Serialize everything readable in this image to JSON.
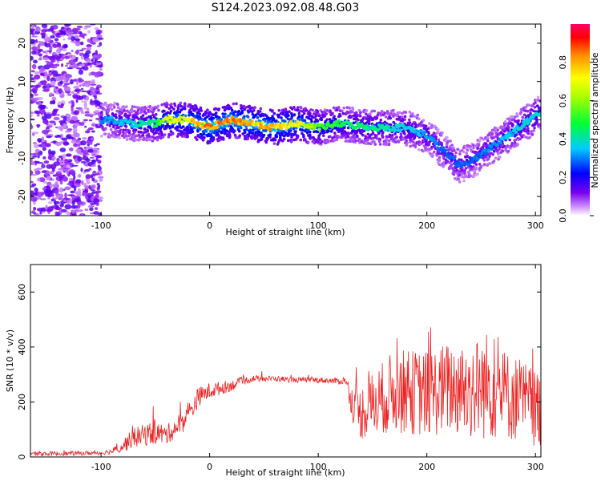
{
  "title": "S124.2023.092.08.48.G03",
  "chart_data": [
    {
      "type": "heatmap",
      "name": "spectrogram",
      "xlabel": "Height of straight line (km)",
      "ylabel": "Frequency (Hz)",
      "xlim": [
        -165,
        305
      ],
      "ylim": [
        -25,
        25
      ],
      "xticks": [
        -100,
        0,
        100,
        200,
        300
      ],
      "yticks": [
        -20,
        -10,
        0,
        10,
        20
      ],
      "xtick_labels": [
        "-100",
        "0",
        "100",
        "200",
        "300"
      ],
      "ytick_labels": [
        "-20",
        "-10",
        "0",
        "10",
        "20"
      ],
      "colorbar": {
        "label": "Normalized spectral amplitude",
        "range": [
          0,
          1
        ],
        "ticks": [
          0.0,
          0.2,
          0.4,
          0.6,
          0.8
        ],
        "tick_labels": [
          "0.0",
          "0.2",
          "0.4",
          "0.6",
          "0.8"
        ]
      },
      "noise_region_x": [
        -165,
        -100
      ],
      "ridge": {
        "x": [
          -105,
          -90,
          -70,
          -50,
          -40,
          -20,
          0,
          20,
          40,
          60,
          80,
          100,
          120,
          150,
          180,
          200,
          215,
          230,
          245,
          265,
          285,
          305
        ],
        "freq": [
          0,
          0,
          -1,
          -1,
          0,
          0,
          -2,
          0,
          -1,
          -2,
          -1,
          -2,
          -1,
          -2,
          -2,
          -4,
          -8,
          -12,
          -10,
          -6,
          -2,
          2
        ],
        "amplitude": [
          0.3,
          0.35,
          0.4,
          0.5,
          0.7,
          0.8,
          0.9,
          0.9,
          0.85,
          0.85,
          0.8,
          0.6,
          0.5,
          0.45,
          0.4,
          0.35,
          0.3,
          0.3,
          0.3,
          0.35,
          0.4,
          0.4
        ]
      }
    },
    {
      "type": "line",
      "name": "snr",
      "xlabel": "Height of straight line (km)",
      "ylabel": "SNR (10 * v/v)",
      "xlim": [
        -165,
        305
      ],
      "ylim": [
        0,
        700
      ],
      "xticks": [
        -100,
        0,
        100,
        200,
        300
      ],
      "yticks": [
        0,
        200,
        400,
        600
      ],
      "xtick_labels": [
        "-100",
        "0",
        "100",
        "200",
        "300"
      ],
      "ytick_labels": [
        "0",
        "200",
        "400",
        "600"
      ],
      "color": "#ee2222",
      "series": [
        {
          "name": "SNR",
          "x": [
            -165,
            -130,
            -100,
            -90,
            -80,
            -70,
            -60,
            -50,
            -40,
            -30,
            -20,
            -10,
            0,
            10,
            20,
            30,
            40,
            60,
            80,
            100,
            120,
            125,
            135,
            150,
            170,
            200,
            220,
            240,
            255,
            270,
            290,
            305
          ],
          "y": [
            12,
            12,
            15,
            20,
            40,
            70,
            80,
            90,
            80,
            110,
            150,
            220,
            240,
            250,
            260,
            275,
            285,
            285,
            280,
            280,
            275,
            280,
            150,
            190,
            240,
            230,
            250,
            240,
            260,
            230,
            200,
            170
          ],
          "spread": [
            8,
            8,
            8,
            10,
            25,
            35,
            40,
            45,
            35,
            40,
            45,
            35,
            30,
            25,
            20,
            15,
            12,
            10,
            10,
            10,
            12,
            15,
            90,
            120,
            150,
            160,
            170,
            180,
            200,
            170,
            150,
            140
          ]
        }
      ]
    }
  ]
}
